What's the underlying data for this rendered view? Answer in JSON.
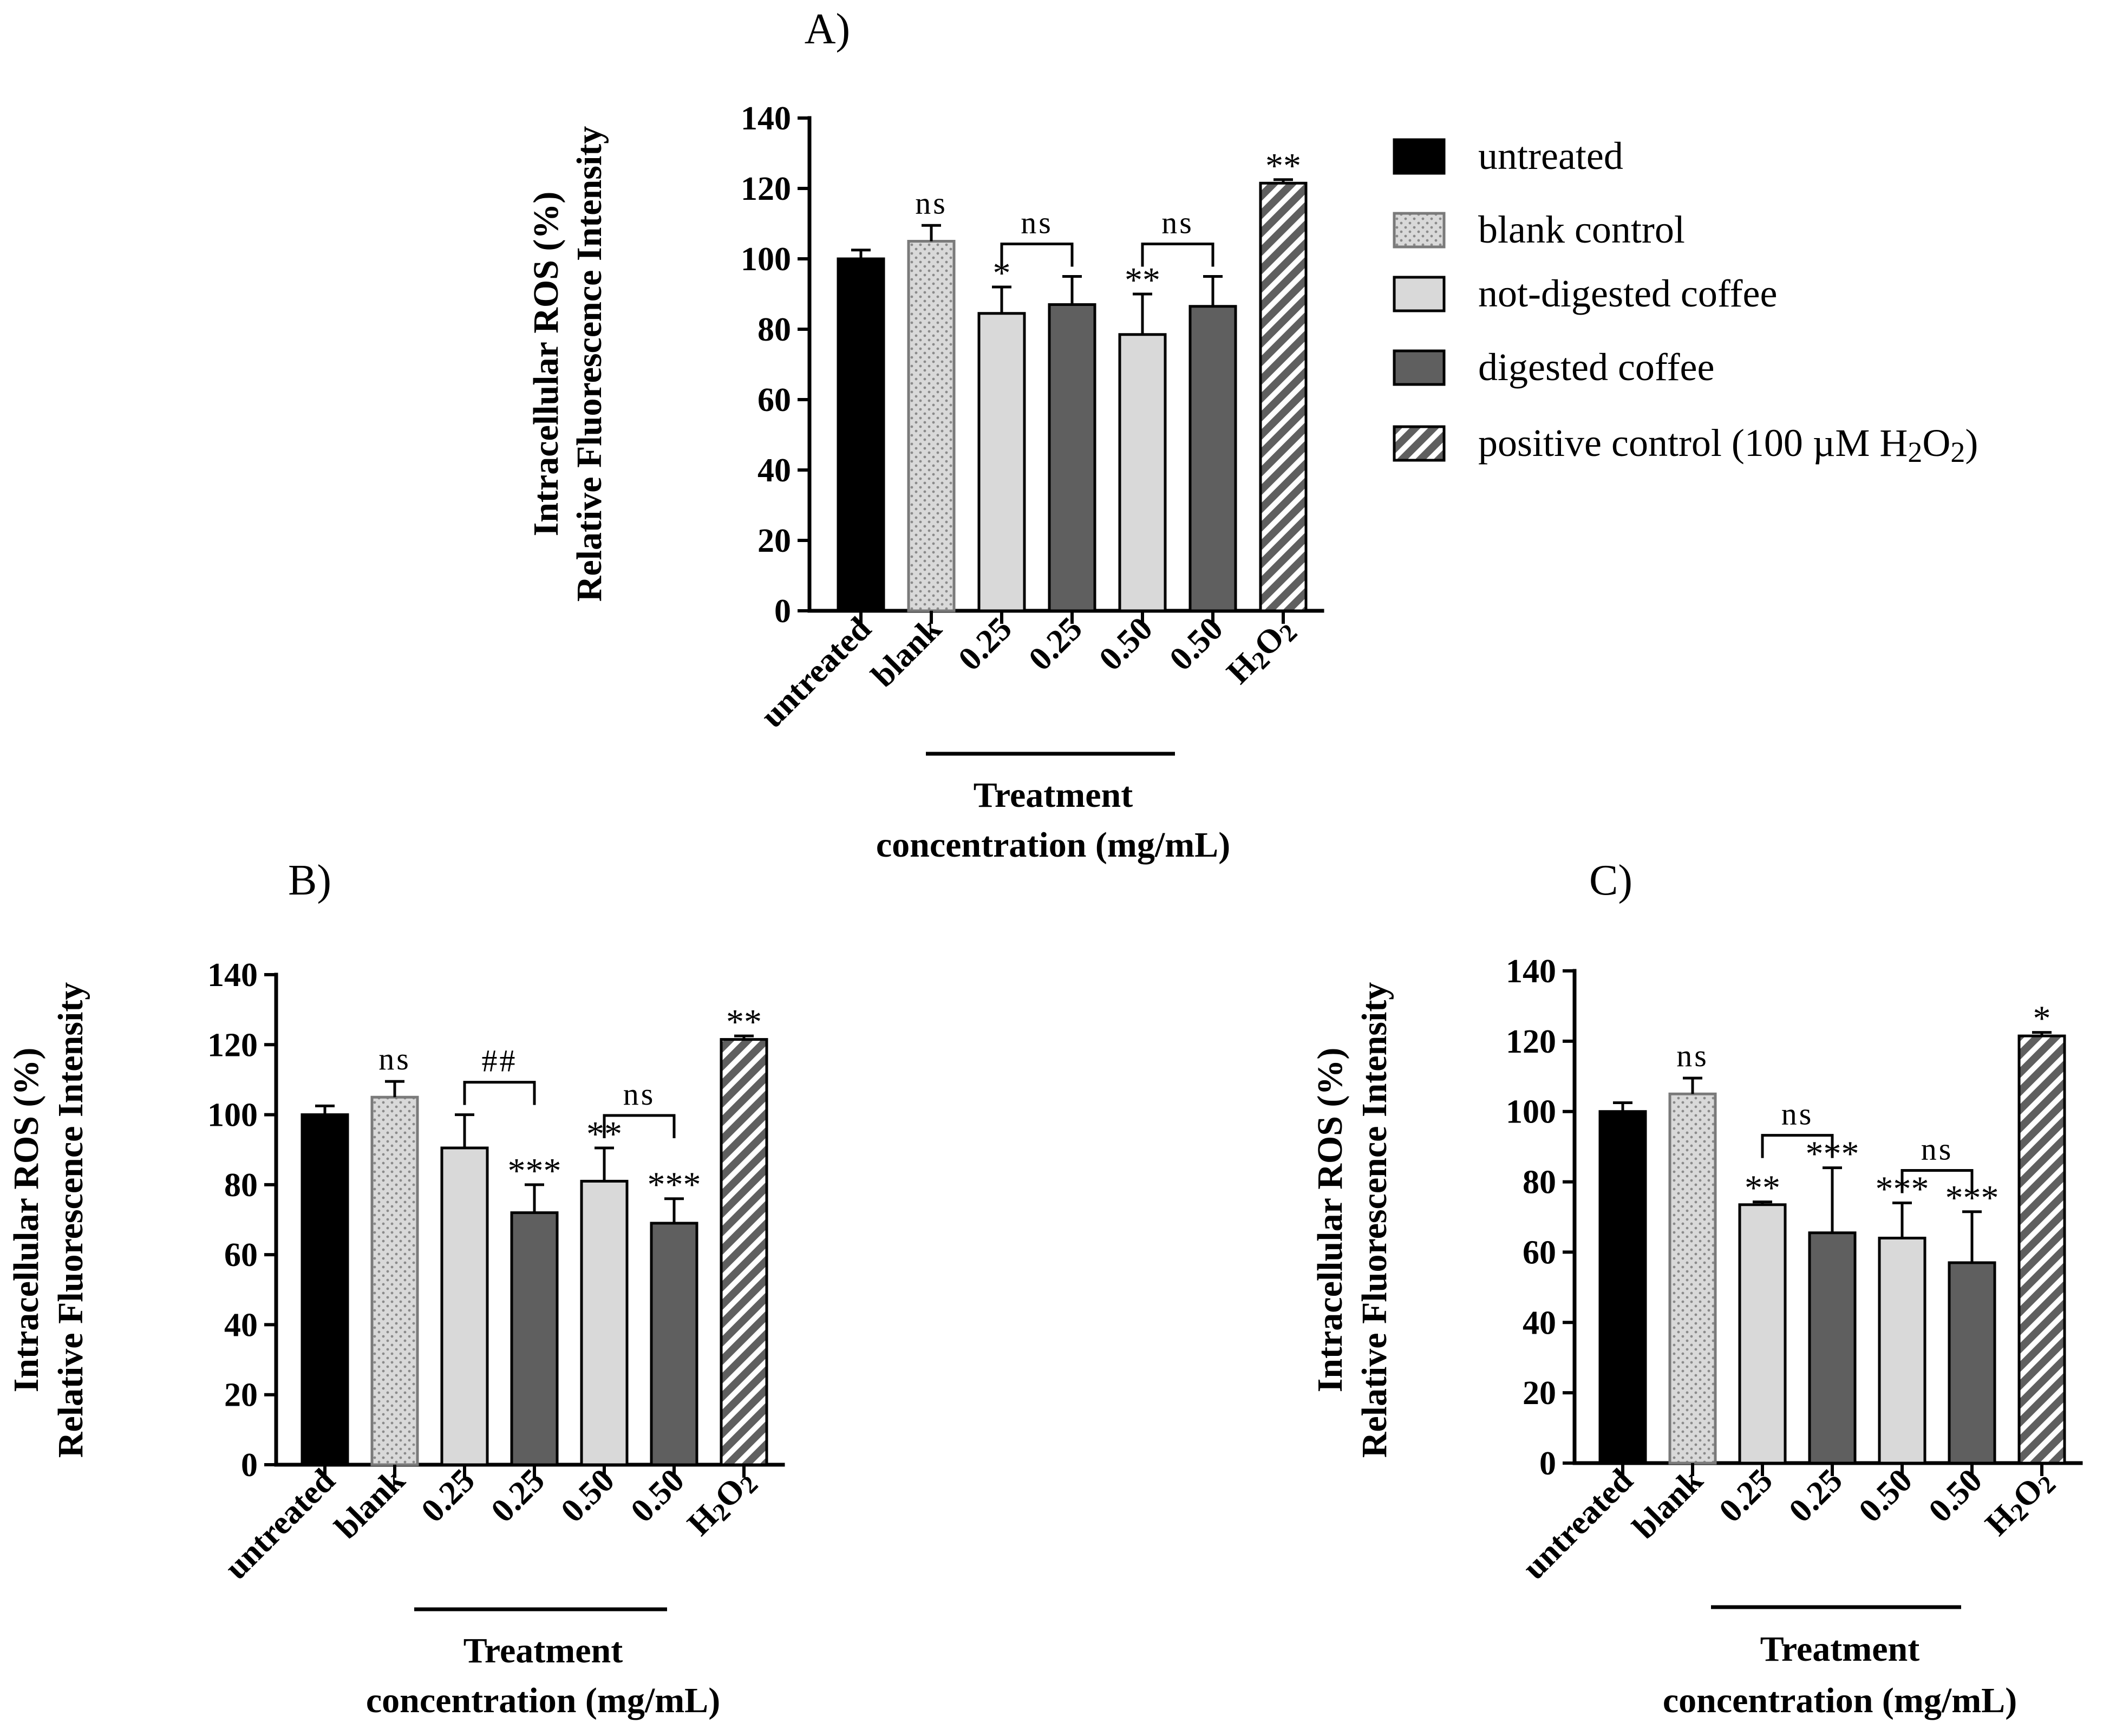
{
  "colors": {
    "untreated": "#000000",
    "blank": "#d9d9d9",
    "not_digested": "#d9d9d9",
    "digested": "#5f5f5f",
    "positive": "#5f5f5f"
  },
  "legend": {
    "items": [
      {
        "key": "untreated",
        "label": "untreated",
        "pattern": "solid-black"
      },
      {
        "key": "blank",
        "label": "blank control",
        "pattern": "dots"
      },
      {
        "key": "not_digested",
        "label": "not-digested coffee",
        "pattern": "light-gray"
      },
      {
        "key": "digested",
        "label": "digested coffee",
        "pattern": "dark-gray"
      },
      {
        "key": "positive",
        "label": "positive control (100 µM H₂O₂)",
        "pattern": "hatch"
      }
    ]
  },
  "chart_data": [
    {
      "id": "A",
      "type": "bar",
      "title": "A)",
      "ylabel_line1": "Intracellular ROS (%)",
      "ylabel_line2": "Relative Fluorescence Intensity",
      "xlabel_line1": "Treatment",
      "xlabel_line2": "concentration (mg/mL)",
      "ylim": [
        0,
        140
      ],
      "yticks": [
        "0",
        "20",
        "40",
        "60",
        "80",
        "100",
        "120",
        "140"
      ],
      "categories": [
        "untreated",
        "blank",
        "0.25",
        "0.25",
        "0.50",
        "0.50",
        "H₂O₂"
      ],
      "groups": [
        "untreated",
        "blank",
        "not_digested",
        "digested",
        "not_digested",
        "digested",
        "positive"
      ],
      "values": [
        100,
        105,
        84.5,
        87,
        78.5,
        86.5,
        121.5
      ],
      "errors": [
        2.5,
        4.5,
        7.5,
        8,
        11.5,
        8.5,
        1
      ],
      "significance": [
        "",
        "ns",
        "*",
        "",
        "**",
        "",
        "**"
      ],
      "brackets": [
        {
          "from": 2,
          "to": 3,
          "label": "ns"
        },
        {
          "from": 4,
          "to": 5,
          "label": "ns"
        }
      ]
    },
    {
      "id": "B",
      "type": "bar",
      "title": "B)",
      "ylabel_line1": "Intracellular ROS (%)",
      "ylabel_line2": "Relative Fluorescence Intensity",
      "xlabel_line1": "Treatment",
      "xlabel_line2": "concentration (mg/mL)",
      "ylim": [
        0,
        140
      ],
      "yticks": [
        "0",
        "20",
        "40",
        "60",
        "80",
        "100",
        "120",
        "140"
      ],
      "categories": [
        "untreated",
        "blank",
        "0.25",
        "0.25",
        "0.50",
        "0.50",
        "H₂O₂"
      ],
      "groups": [
        "untreated",
        "blank",
        "not_digested",
        "digested",
        "not_digested",
        "digested",
        "positive"
      ],
      "values": [
        100,
        105,
        90.5,
        72,
        81,
        69,
        121.5
      ],
      "errors": [
        2.5,
        4.5,
        9.5,
        8,
        9.5,
        7,
        1
      ],
      "significance": [
        "",
        "ns",
        "",
        "***",
        "**",
        "***",
        "**"
      ],
      "brackets": [
        {
          "from": 2,
          "to": 3,
          "label": "##"
        },
        {
          "from": 4,
          "to": 5,
          "label": "ns"
        }
      ]
    },
    {
      "id": "C",
      "type": "bar",
      "title": "C)",
      "ylabel_line1": "Intracellular ROS (%)",
      "ylabel_line2": "Relative Fluorescence Intensity",
      "xlabel_line1": "Treatment",
      "xlabel_line2": "concentration (mg/mL)",
      "ylim": [
        0,
        140
      ],
      "yticks": [
        "0",
        "20",
        "40",
        "60",
        "80",
        "100",
        "120",
        "140"
      ],
      "categories": [
        "untreated",
        "blank",
        "0.25",
        "0.25",
        "0.50",
        "0.50",
        "H₂O₂"
      ],
      "groups": [
        "untreated",
        "blank",
        "not_digested",
        "digested",
        "not_digested",
        "digested",
        "positive"
      ],
      "values": [
        100,
        105,
        73.5,
        65.5,
        64,
        57,
        121.5
      ],
      "errors": [
        2.5,
        4.5,
        0.8,
        18.5,
        10,
        14.5,
        1
      ],
      "significance": [
        "",
        "ns",
        "**",
        "***",
        "***",
        "***",
        "*"
      ],
      "brackets": [
        {
          "from": 2,
          "to": 3,
          "label": "ns"
        },
        {
          "from": 4,
          "to": 5,
          "label": "ns"
        }
      ]
    }
  ]
}
